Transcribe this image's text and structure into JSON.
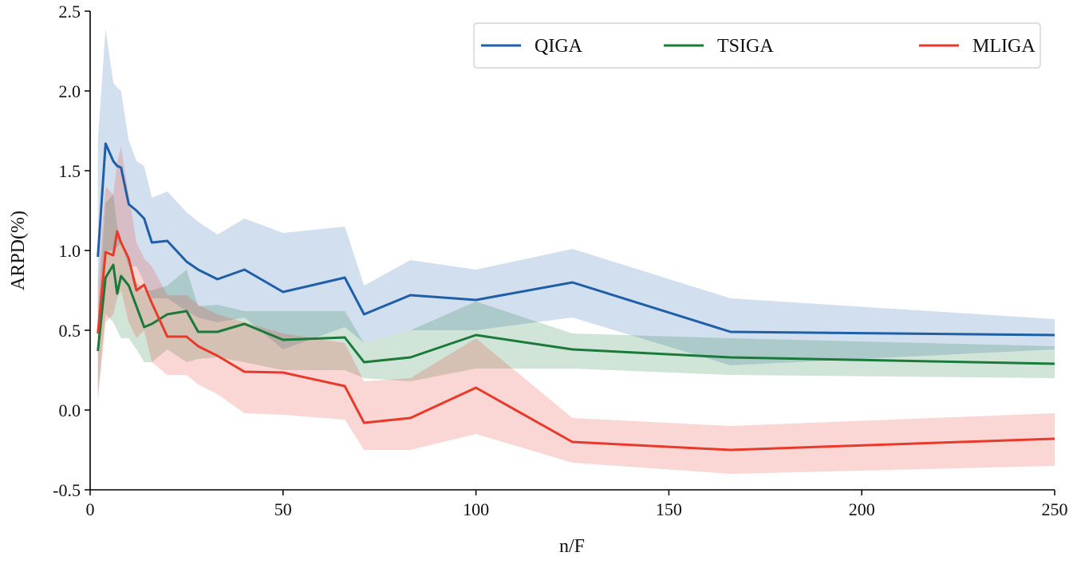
{
  "chart_data": {
    "type": "line",
    "title": "",
    "xlabel": "n/F",
    "ylabel": "ARPD(%)",
    "xlim": [
      0,
      250
    ],
    "ylim": [
      -0.5,
      2.5
    ],
    "xticks": [
      0,
      50,
      100,
      150,
      200,
      250
    ],
    "xtick_labels": [
      "0",
      "50",
      "100",
      "150",
      "200",
      "250"
    ],
    "yticks": [
      -0.5,
      0.0,
      0.5,
      1.0,
      1.5,
      2.0,
      2.5
    ],
    "ytick_labels": [
      "-0.5",
      "0.0",
      "0.5",
      "1.0",
      "1.5",
      "2.0",
      "2.5"
    ],
    "grid": false,
    "legend_position": "top-right",
    "x": [
      2,
      4,
      6,
      7,
      8,
      10,
      12,
      14,
      16,
      20,
      25,
      28,
      33,
      40,
      50,
      66,
      71,
      83,
      100,
      125,
      166,
      250
    ],
    "series": [
      {
        "name": "QIGA",
        "color": "#1f5fa8",
        "values": [
          0.96,
          1.67,
          1.56,
          1.53,
          1.52,
          1.29,
          1.25,
          1.2,
          1.05,
          1.06,
          0.93,
          0.88,
          0.82,
          0.88,
          0.74,
          0.83,
          0.6,
          0.72,
          0.69,
          0.8,
          0.49,
          0.47
        ],
        "upper": [
          1.69,
          2.39,
          2.05,
          2.02,
          2.0,
          1.69,
          1.56,
          1.53,
          1.33,
          1.37,
          1.24,
          1.18,
          1.1,
          1.2,
          1.11,
          1.15,
          0.78,
          0.94,
          0.88,
          1.01,
          0.7,
          0.57
        ],
        "lower": [
          0.35,
          1.0,
          1.0,
          1.02,
          1.05,
          0.9,
          0.9,
          0.8,
          0.7,
          0.7,
          0.62,
          0.58,
          0.55,
          0.58,
          0.38,
          0.52,
          0.42,
          0.5,
          0.5,
          0.58,
          0.28,
          0.38
        ]
      },
      {
        "name": "TSIGA",
        "color": "#1a7a3a",
        "values": [
          0.37,
          0.83,
          0.91,
          0.73,
          0.84,
          0.78,
          0.65,
          0.52,
          0.54,
          0.6,
          0.62,
          0.49,
          0.49,
          0.54,
          0.44,
          0.455,
          0.3,
          0.33,
          0.47,
          0.38,
          0.33,
          0.29
        ],
        "upper": [
          0.6,
          1.3,
          1.35,
          1.15,
          1.05,
          0.95,
          0.8,
          0.75,
          0.75,
          0.78,
          0.88,
          0.65,
          0.66,
          0.62,
          0.62,
          0.62,
          0.42,
          0.5,
          0.68,
          0.48,
          0.45,
          0.4
        ],
        "lower": [
          0.1,
          0.6,
          0.55,
          0.5,
          0.45,
          0.45,
          0.38,
          0.3,
          0.3,
          0.38,
          0.3,
          0.32,
          0.33,
          0.3,
          0.25,
          0.25,
          0.2,
          0.18,
          0.26,
          0.26,
          0.22,
          0.2
        ]
      },
      {
        "name": "MLIGA",
        "color": "#e8392a",
        "values": [
          0.48,
          0.99,
          0.97,
          1.12,
          1.05,
          0.95,
          0.75,
          0.785,
          0.67,
          0.46,
          0.46,
          0.4,
          0.34,
          0.24,
          0.235,
          0.15,
          -0.08,
          -0.05,
          0.14,
          -0.2,
          -0.25,
          -0.18
        ],
        "upper": [
          0.8,
          1.4,
          1.35,
          1.55,
          1.65,
          1.35,
          1.05,
          0.95,
          0.9,
          0.72,
          0.72,
          0.66,
          0.6,
          0.55,
          0.48,
          0.42,
          0.18,
          0.2,
          0.45,
          -0.05,
          -0.1,
          -0.02
        ],
        "lower": [
          0.05,
          0.55,
          0.6,
          0.7,
          0.75,
          0.55,
          0.45,
          0.5,
          0.3,
          0.22,
          0.22,
          0.16,
          0.1,
          -0.02,
          -0.03,
          -0.06,
          -0.25,
          -0.25,
          -0.15,
          -0.33,
          -0.4,
          -0.35
        ]
      }
    ]
  }
}
